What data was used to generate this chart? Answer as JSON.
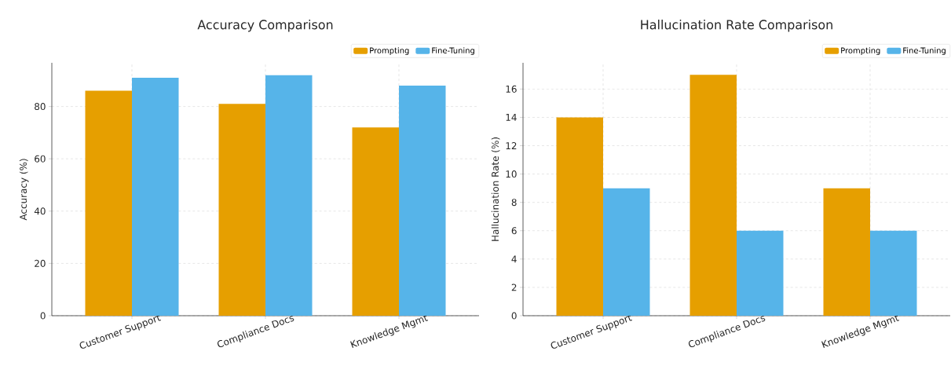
{
  "chart_data": [
    {
      "type": "bar",
      "title": "Accuracy Comparison",
      "ylabel": "Accuracy (%)",
      "categories": [
        "Customer Support",
        "Compliance Docs",
        "Knowledge Mgmt"
      ],
      "series": [
        {
          "name": "Prompting",
          "color": "#e69f00",
          "values": [
            86,
            81,
            72
          ]
        },
        {
          "name": "Fine-Tuning",
          "color": "#56b4e9",
          "values": [
            91,
            92,
            88
          ]
        }
      ],
      "ylim": [
        0,
        96.7
      ],
      "yticks": [
        0,
        20,
        40,
        60,
        80
      ],
      "grid": true,
      "legend": "top right"
    },
    {
      "type": "bar",
      "title": "Hallucination Rate Comparison",
      "ylabel": "Hallucination Rate (%)",
      "categories": [
        "Customer Support",
        "Compliance Docs",
        "Knowledge Mgmt"
      ],
      "series": [
        {
          "name": "Prompting",
          "color": "#e69f00",
          "values": [
            14,
            17,
            9
          ]
        },
        {
          "name": "Fine-Tuning",
          "color": "#56b4e9",
          "values": [
            9,
            6,
            6
          ]
        }
      ],
      "ylim": [
        0,
        17.85
      ],
      "yticks": [
        0,
        2,
        4,
        6,
        8,
        10,
        12,
        14,
        16
      ],
      "grid": true,
      "legend": "top right"
    }
  ]
}
